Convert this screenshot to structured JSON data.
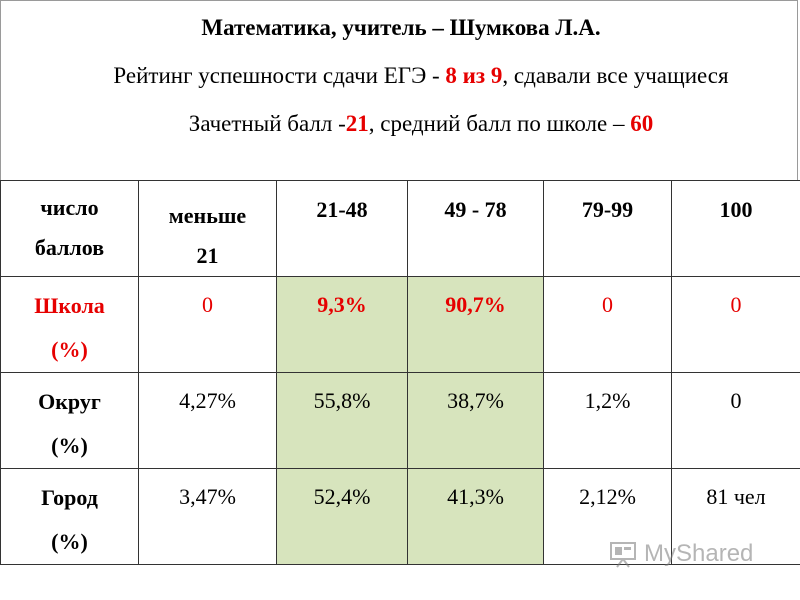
{
  "header": {
    "title": "Математика, учитель – Шумкова Л.А.",
    "line2": {
      "pre": "Рейтинг успешности сдачи ЕГЭ - ",
      "highlight": "8 из 9",
      "post": ", сдавали все учащиеся"
    },
    "line3": {
      "pre": "Зачетный балл -",
      "highlight1": "21",
      "mid": ", средний балл по школе – ",
      "highlight2": "60"
    }
  },
  "table": {
    "head": {
      "label_line1": "число",
      "label_line2": "баллов",
      "col1_line1": "меньше",
      "col1_line2": "21",
      "cols": [
        "21-48",
        "49 - 78",
        "79-99",
        "100"
      ]
    },
    "rows": [
      {
        "label_line1": "Школа",
        "label_line2": "(%)",
        "values": [
          "0",
          "9,3%",
          "90,7%",
          "0",
          "0"
        ]
      },
      {
        "label_line1": "Округ",
        "label_line2": "(%)",
        "values": [
          "4,27%",
          "55,8%",
          "38,7%",
          "1,2%",
          "0"
        ]
      },
      {
        "label_line1": "Город",
        "label_line2": "(%)",
        "values": [
          "3,47%",
          "52,4%",
          "41,3%",
          "2,12%",
          "81 чел"
        ]
      }
    ]
  },
  "colors": {
    "highlight": "#e60000",
    "green_cell": "#d7e4bd"
  },
  "watermark": {
    "text": "MyShared",
    "icon": "presentation-board-icon"
  }
}
